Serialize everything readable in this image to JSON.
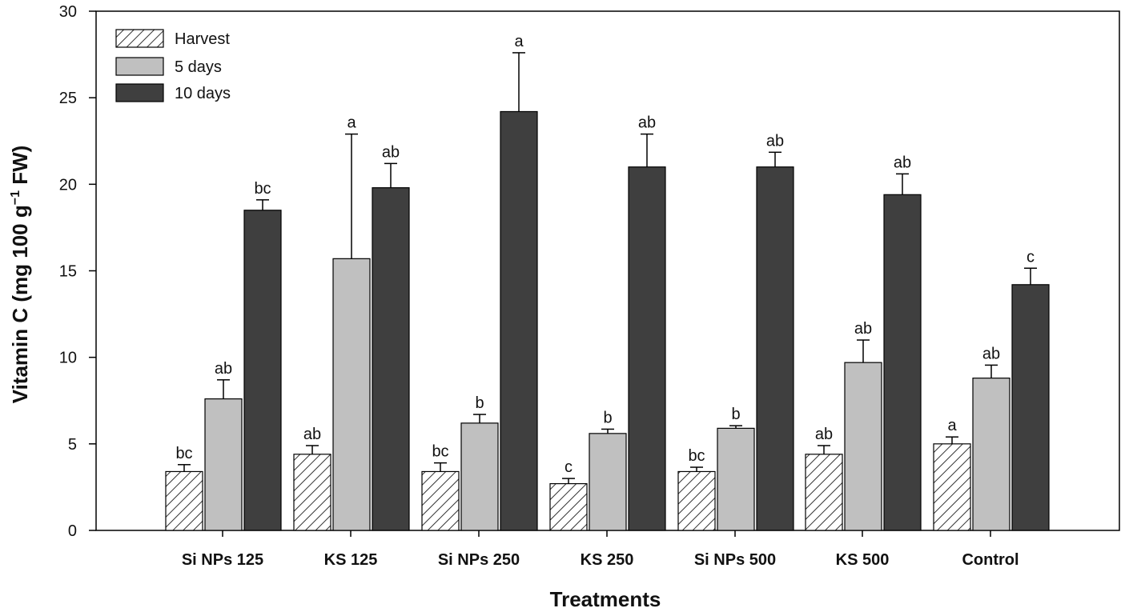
{
  "chart_data": {
    "type": "bar",
    "title": "",
    "xlabel": "Treatments",
    "ylabel": "Vitamin C (mg 100 g",
    "ylabel_sup": "−1",
    "ylabel_suffix": " FW)",
    "ylim": [
      0,
      30
    ],
    "yticks": [
      "0",
      "5",
      "10",
      "15",
      "20",
      "25",
      "30"
    ],
    "legend_position": "top-left",
    "categories": [
      "Si NPs 125",
      "KS 125",
      "Si NPs 250",
      "KS 250",
      "Si NPs 500",
      "KS 500",
      "Control"
    ],
    "series": [
      {
        "name": "Harvest",
        "style": "hatch",
        "values": [
          3.4,
          4.4,
          3.4,
          2.7,
          3.4,
          4.4,
          5.0
        ],
        "errors": [
          0.4,
          0.5,
          0.5,
          0.3,
          0.25,
          0.5,
          0.4
        ],
        "letters": [
          "bc",
          "ab",
          "bc",
          "c",
          "bc",
          "ab",
          "a"
        ]
      },
      {
        "name": "5 days",
        "style": "light",
        "values": [
          7.6,
          15.7,
          6.2,
          5.6,
          5.9,
          9.7,
          8.8
        ],
        "errors": [
          1.1,
          7.2,
          0.5,
          0.25,
          0.15,
          1.3,
          0.75
        ],
        "letters": [
          "ab",
          "a",
          "b",
          "b",
          "b",
          "ab",
          "ab"
        ]
      },
      {
        "name": "10 days",
        "style": "dark",
        "values": [
          18.5,
          19.8,
          24.2,
          21.0,
          21.0,
          19.4,
          14.2
        ],
        "errors": [
          0.6,
          1.4,
          3.4,
          1.9,
          0.85,
          1.2,
          0.95
        ],
        "letters": [
          "bc",
          "ab",
          "a",
          "ab",
          "ab",
          "ab",
          "c"
        ]
      }
    ],
    "colors": {
      "light": "#c0c0c0",
      "dark": "#3f3f3f",
      "hatch_fill": "#ffffff",
      "axis": "#000000"
    }
  }
}
